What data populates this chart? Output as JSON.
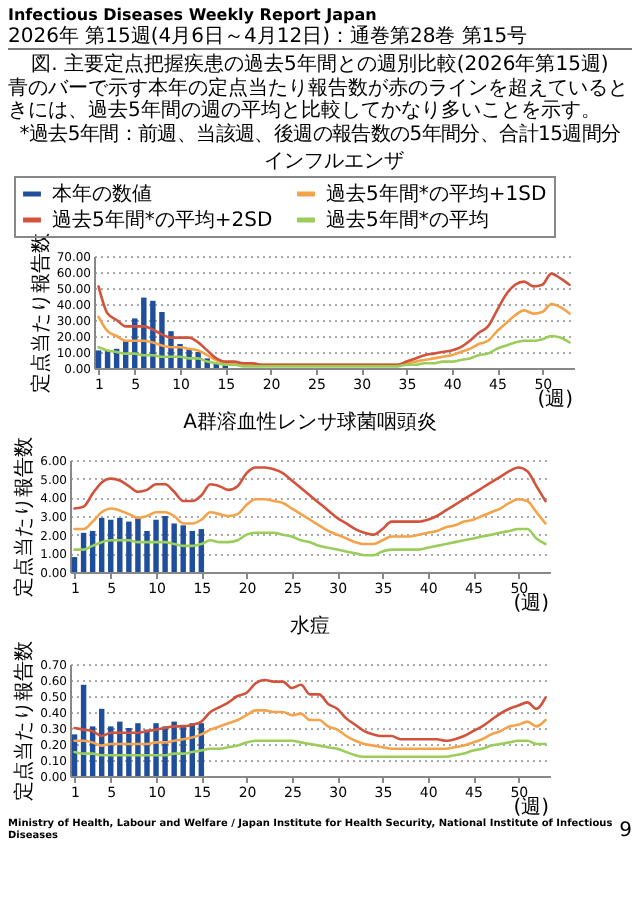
{
  "chart_data": [
    {
      "type": "other",
      "title": "図. 主要定点把握疾患の過去5年間との週別比較(2026年第15週)",
      "subtitle": "青のバーで示す本年の定点当たり報告数が赤のラインを超えているときには、過去5年間の週の平均と比較してかなり多いことを示す。",
      "annotations": [
        "Infectious Diseases Weekly Report Japan",
        "2026年 第15週(4月6日～4月12日)：通巻第28巻 第15号",
        "*過去5年間：前週、当該週、後週の報告数の5年間分、合計15週間分"
      ]
    },
    {
      "type": "line",
      "title": "インフルエンザ",
      "ylabel": "定点当たり報告数",
      "xlabel": "(週)",
      "legend": "top",
      "grid": "y",
      "xlim": [
        0.5,
        53.5
      ],
      "xticks": [
        1,
        5,
        10,
        15,
        20,
        25,
        30,
        35,
        40,
        45,
        50
      ],
      "ylim": [
        0,
        70
      ],
      "yticks": [
        {
          "value": 0,
          "label": "0.00"
        },
        {
          "value": 10,
          "label": "10.00"
        },
        {
          "value": 20,
          "label": "20.00"
        },
        {
          "value": 30,
          "label": "30.00"
        },
        {
          "value": 40,
          "label": "40.00"
        },
        {
          "value": 50,
          "label": "50.00"
        },
        {
          "value": 60,
          "label": "60.00"
        },
        {
          "value": 70,
          "label": "70.00"
        }
      ],
      "x": [
        1,
        2,
        3,
        4,
        5,
        6,
        7,
        8,
        9,
        10,
        11,
        12,
        13,
        14,
        15,
        16,
        17,
        18,
        19,
        20,
        21,
        22,
        23,
        24,
        25,
        26,
        27,
        28,
        29,
        30,
        31,
        32,
        33,
        34,
        35,
        36,
        37,
        38,
        39,
        40,
        41,
        42,
        43,
        44,
        45,
        46,
        47,
        48,
        49,
        50,
        51,
        52,
        53
      ],
      "series": [
        {
          "name": "本年の数値",
          "type": "bar",
          "color": "#1f4e9c",
          "x": [
            1,
            2,
            3,
            4,
            5,
            6,
            7,
            8,
            9,
            10,
            11,
            12,
            13,
            14,
            15
          ],
          "values": [
            11,
            11,
            12,
            17,
            31,
            44,
            42,
            35,
            23,
            15,
            12,
            10,
            6,
            3,
            2
          ]
        },
        {
          "name": "過去5年間*の平均+1SD",
          "color": "#f5a34a",
          "values": [
            32,
            23,
            20,
            17,
            17,
            17,
            16,
            14,
            13,
            13,
            12,
            11,
            8,
            5,
            3,
            3,
            2,
            2,
            2,
            2,
            2,
            2,
            2,
            2,
            2,
            2,
            2,
            2,
            2,
            2,
            2,
            2,
            2,
            2,
            3,
            4,
            5,
            6,
            7,
            8,
            10,
            12,
            15,
            17,
            23,
            28,
            33,
            36,
            34,
            35,
            40,
            38,
            34
          ]
        },
        {
          "name": "過去5年間*の平均+2SD",
          "color": "#d2533c",
          "values": [
            51,
            34,
            30,
            26,
            26,
            26,
            24,
            21,
            19,
            19,
            19,
            16,
            11,
            6,
            4,
            4,
            3,
            3,
            2,
            2,
            2,
            2,
            2,
            2,
            2,
            2,
            2,
            2,
            2,
            2,
            2,
            2,
            2,
            2,
            4,
            6,
            8,
            9,
            10,
            11,
            13,
            17,
            22,
            26,
            36,
            46,
            52,
            54,
            51,
            52,
            59,
            56,
            52
          ]
        },
        {
          "name": "過去5年間*の平均",
          "color": "#9acd5a",
          "values": [
            13,
            11,
            10,
            9,
            9,
            8,
            8,
            7,
            7,
            7,
            6,
            6,
            4,
            3,
            2,
            2,
            1,
            1,
            1,
            1,
            1,
            1,
            1,
            1,
            1,
            1,
            1,
            1,
            1,
            1,
            1,
            1,
            1,
            1,
            2,
            2,
            3,
            3,
            4,
            4,
            5,
            6,
            8,
            9,
            12,
            14,
            16,
            17,
            17,
            18,
            20,
            19,
            16
          ]
        }
      ]
    },
    {
      "type": "line",
      "title": "A群溶血性レンサ球菌咽頭炎",
      "ylabel": "定点当たり報告数",
      "xlabel": "(週)",
      "grid": "y",
      "xlim": [
        0.5,
        53.5
      ],
      "xticks": [
        1,
        5,
        10,
        15,
        20,
        25,
        30,
        35,
        40,
        45,
        50
      ],
      "ylim": [
        0,
        6
      ],
      "yticks": [
        {
          "value": 0,
          "label": "0.00"
        },
        {
          "value": 1,
          "label": "1.00"
        },
        {
          "value": 2,
          "label": "2.00"
        },
        {
          "value": 3,
          "label": "3.00"
        },
        {
          "value": 4,
          "label": "4.00"
        },
        {
          "value": 5,
          "label": "5.00"
        },
        {
          "value": 6,
          "label": "6.00"
        }
      ],
      "x": [
        1,
        2,
        3,
        4,
        5,
        6,
        7,
        8,
        9,
        10,
        11,
        12,
        13,
        14,
        15,
        16,
        17,
        18,
        19,
        20,
        21,
        22,
        23,
        24,
        25,
        26,
        27,
        28,
        29,
        30,
        31,
        32,
        33,
        34,
        35,
        36,
        37,
        38,
        39,
        40,
        41,
        42,
        43,
        44,
        45,
        46,
        47,
        48,
        49,
        50,
        51,
        52,
        53
      ],
      "series": [
        {
          "type": "bar",
          "color": "#1f4e9c",
          "x": [
            1,
            2,
            3,
            4,
            5,
            6,
            7,
            8,
            9,
            10,
            11,
            12,
            13,
            14,
            15
          ],
          "values": [
            0.8,
            2.1,
            2.2,
            2.9,
            2.8,
            2.9,
            2.7,
            2.9,
            2.2,
            2.8,
            3.0,
            2.6,
            2.5,
            2.2,
            2.3
          ]
        },
        {
          "color": "#f5a34a",
          "values": [
            2.3,
            2.3,
            2.7,
            3.2,
            3.4,
            3.3,
            3.1,
            2.9,
            3.0,
            3.2,
            3.2,
            3.0,
            2.6,
            2.6,
            2.8,
            3.2,
            3.1,
            3.0,
            3.1,
            3.6,
            3.9,
            3.9,
            3.8,
            3.7,
            3.4,
            3.1,
            2.8,
            2.5,
            2.2,
            2.0,
            1.8,
            1.6,
            1.5,
            1.5,
            1.7,
            1.9,
            1.9,
            1.9,
            2.0,
            2.1,
            2.2,
            2.4,
            2.5,
            2.7,
            2.8,
            3.0,
            3.2,
            3.4,
            3.7,
            3.9,
            3.8,
            3.2,
            2.6
          ]
        },
        {
          "color": "#d2533c",
          "values": [
            3.4,
            3.5,
            4.2,
            4.8,
            5.0,
            4.9,
            4.6,
            4.3,
            4.4,
            4.7,
            4.7,
            4.3,
            3.8,
            3.8,
            4.1,
            4.7,
            4.6,
            4.4,
            4.6,
            5.3,
            5.6,
            5.6,
            5.5,
            5.3,
            4.9,
            4.5,
            4.1,
            3.7,
            3.3,
            2.9,
            2.6,
            2.3,
            2.1,
            2.0,
            2.3,
            2.7,
            2.7,
            2.7,
            2.7,
            2.8,
            3.0,
            3.3,
            3.6,
            3.9,
            4.2,
            4.5,
            4.8,
            5.1,
            5.4,
            5.6,
            5.4,
            4.6,
            3.8
          ]
        },
        {
          "color": "#9acd5a",
          "values": [
            1.2,
            1.2,
            1.4,
            1.6,
            1.7,
            1.7,
            1.7,
            1.6,
            1.6,
            1.6,
            1.6,
            1.5,
            1.4,
            1.4,
            1.5,
            1.7,
            1.6,
            1.6,
            1.7,
            2.0,
            2.1,
            2.1,
            2.1,
            2.0,
            1.9,
            1.7,
            1.6,
            1.4,
            1.3,
            1.2,
            1.1,
            1.0,
            0.9,
            0.9,
            1.1,
            1.2,
            1.2,
            1.2,
            1.2,
            1.3,
            1.4,
            1.5,
            1.6,
            1.7,
            1.8,
            1.9,
            2.0,
            2.1,
            2.2,
            2.3,
            2.3,
            1.8,
            1.5
          ]
        }
      ]
    },
    {
      "type": "line",
      "title": "水痘",
      "ylabel": "定点当たり報告数",
      "xlabel": "(週)",
      "grid": "y",
      "xlim": [
        0.5,
        53.5
      ],
      "xticks": [
        1,
        5,
        10,
        15,
        20,
        25,
        30,
        35,
        40,
        45,
        50
      ],
      "ylim": [
        0,
        0.7
      ],
      "yticks": [
        {
          "value": 0,
          "label": "0.00"
        },
        {
          "value": 0.1,
          "label": "0.10"
        },
        {
          "value": 0.2,
          "label": "0.20"
        },
        {
          "value": 0.3,
          "label": "0.30"
        },
        {
          "value": 0.4,
          "label": "0.40"
        },
        {
          "value": 0.5,
          "label": "0.50"
        },
        {
          "value": 0.6,
          "label": "0.60"
        },
        {
          "value": 0.7,
          "label": "0.70"
        }
      ],
      "annotations": [
        "Ministry of Health, Labour and Welfare / Japan Institute for Health Security, National Institute of Infectious Diseases",
        "9"
      ],
      "x": [
        1,
        2,
        3,
        4,
        5,
        6,
        7,
        8,
        9,
        10,
        11,
        12,
        13,
        14,
        15,
        16,
        17,
        18,
        19,
        20,
        21,
        22,
        23,
        24,
        25,
        26,
        27,
        28,
        29,
        30,
        31,
        32,
        33,
        34,
        35,
        36,
        37,
        38,
        39,
        40,
        41,
        42,
        43,
        44,
        45,
        46,
        47,
        48,
        49,
        50,
        51,
        52,
        53
      ],
      "series": [
        {
          "type": "bar",
          "color": "#1f4e9c",
          "x": [
            1,
            2,
            3,
            4,
            5,
            6,
            7,
            8,
            9,
            10,
            11,
            12,
            13,
            14,
            15
          ],
          "values": [
            0.26,
            0.57,
            0.31,
            0.42,
            0.31,
            0.34,
            0.3,
            0.33,
            0.29,
            0.33,
            0.31,
            0.34,
            0.32,
            0.33,
            0.33
          ]
        },
        {
          "color": "#f5a34a",
          "values": [
            0.22,
            0.22,
            0.21,
            0.19,
            0.2,
            0.2,
            0.2,
            0.2,
            0.2,
            0.21,
            0.21,
            0.22,
            0.23,
            0.24,
            0.26,
            0.29,
            0.31,
            0.33,
            0.35,
            0.38,
            0.41,
            0.41,
            0.4,
            0.4,
            0.38,
            0.39,
            0.35,
            0.35,
            0.31,
            0.29,
            0.25,
            0.22,
            0.2,
            0.19,
            0.18,
            0.17,
            0.17,
            0.17,
            0.17,
            0.17,
            0.17,
            0.17,
            0.18,
            0.19,
            0.21,
            0.23,
            0.26,
            0.28,
            0.31,
            0.32,
            0.34,
            0.31,
            0.35
          ]
        },
        {
          "color": "#d2533c",
          "values": [
            0.3,
            0.29,
            0.28,
            0.25,
            0.27,
            0.27,
            0.27,
            0.27,
            0.28,
            0.29,
            0.3,
            0.31,
            0.31,
            0.32,
            0.34,
            0.4,
            0.43,
            0.46,
            0.5,
            0.52,
            0.58,
            0.6,
            0.59,
            0.59,
            0.55,
            0.57,
            0.51,
            0.51,
            0.45,
            0.42,
            0.36,
            0.32,
            0.28,
            0.26,
            0.25,
            0.25,
            0.23,
            0.23,
            0.23,
            0.23,
            0.23,
            0.22,
            0.23,
            0.25,
            0.28,
            0.31,
            0.35,
            0.39,
            0.42,
            0.44,
            0.46,
            0.42,
            0.49
          ]
        },
        {
          "color": "#9acd5a",
          "values": [
            0.15,
            0.14,
            0.14,
            0.13,
            0.13,
            0.13,
            0.13,
            0.13,
            0.13,
            0.13,
            0.13,
            0.14,
            0.14,
            0.15,
            0.16,
            0.17,
            0.17,
            0.18,
            0.19,
            0.21,
            0.22,
            0.22,
            0.22,
            0.22,
            0.22,
            0.21,
            0.2,
            0.19,
            0.18,
            0.17,
            0.15,
            0.13,
            0.12,
            0.12,
            0.12,
            0.12,
            0.12,
            0.12,
            0.12,
            0.12,
            0.12,
            0.12,
            0.13,
            0.14,
            0.16,
            0.17,
            0.19,
            0.2,
            0.21,
            0.22,
            0.22,
            0.2,
            0.2
          ]
        }
      ]
    }
  ]
}
